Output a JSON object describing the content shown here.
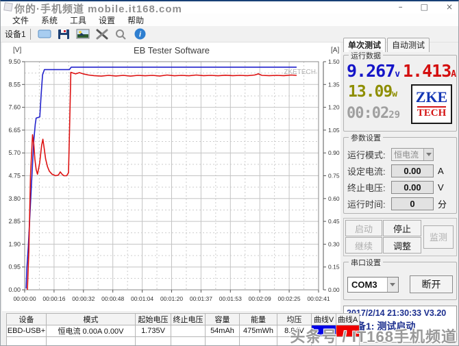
{
  "window": {
    "watermark_top": "你的·手机频道 mobile.it168.com",
    "watermark_bottom": "头条号 / IT168手机频道",
    "controls": {
      "minimize": "–",
      "maximize": "□",
      "close": "×"
    }
  },
  "menu": {
    "items": [
      "文件",
      "系统",
      "工具",
      "设置",
      "帮助"
    ]
  },
  "toolbar": {
    "device_label": "设备1"
  },
  "chart_data": {
    "type": "line",
    "title": "EB Tester Software",
    "watermark": "ZKETECH",
    "left_axis": {
      "unit": "[V]",
      "min": 0,
      "max": 9.5,
      "tick_labels": [
        "9.50",
        "8.55",
        "7.60",
        "6.65",
        "5.70",
        "4.75",
        "3.80",
        "2.85",
        "1.90",
        "0.95",
        "0.00"
      ]
    },
    "right_axis": {
      "unit": "[A]",
      "min": 0,
      "max": 1.5,
      "tick_labels": [
        "1.50",
        "1.35",
        "1.20",
        "1.05",
        "0.90",
        "0.75",
        "0.60",
        "0.45",
        "0.30",
        "0.15",
        "0.00"
      ]
    },
    "x_axis": {
      "min_seconds": 0,
      "max_seconds": 161,
      "tick_labels": [
        "00:00:00",
        "00:00:16",
        "00:00:32",
        "00:00:48",
        "00:01:04",
        "00:01:20",
        "00:01:37",
        "00:01:53",
        "00:02:09",
        "00:02:25",
        "00:02:41"
      ]
    },
    "grid": true,
    "legend": "none",
    "series": [
      {
        "name": "voltage",
        "axis": "left",
        "color": "#2222cc",
        "points": [
          [
            0.8,
            0.05
          ],
          [
            1.2,
            0.9
          ],
          [
            2,
            1.8
          ],
          [
            3,
            3.3
          ],
          [
            4,
            4.8
          ],
          [
            5,
            6.2
          ],
          [
            5.8,
            6.9
          ],
          [
            6.3,
            7.15
          ],
          [
            8.3,
            7.2
          ],
          [
            9,
            8.1
          ],
          [
            9.8,
            8.95
          ],
          [
            10.8,
            9.17
          ],
          [
            24.5,
            9.17
          ],
          [
            25.5,
            9.27
          ],
          [
            149,
            9.27
          ]
        ]
      },
      {
        "name": "current",
        "axis": "right",
        "color": "#dd1111",
        "points": [
          [
            1.5,
            0.0
          ],
          [
            2.3,
            0.25
          ],
          [
            3.2,
            0.75
          ],
          [
            4.3,
            1.02
          ],
          [
            5,
            0.96
          ],
          [
            5.6,
            0.86
          ],
          [
            6.3,
            0.79
          ],
          [
            7,
            0.76
          ],
          [
            8.2,
            0.83
          ],
          [
            9.3,
            0.95
          ],
          [
            10,
            0.99
          ],
          [
            10.7,
            0.93
          ],
          [
            11.5,
            0.86
          ],
          [
            12.5,
            0.81
          ],
          [
            13.5,
            0.78
          ],
          [
            15,
            0.76
          ],
          [
            17,
            0.75
          ],
          [
            18.5,
            0.755
          ],
          [
            19.5,
            0.775
          ],
          [
            20.5,
            0.76
          ],
          [
            21.5,
            0.75
          ],
          [
            23,
            0.75
          ],
          [
            24,
            0.77
          ],
          [
            24.6,
            1.05
          ],
          [
            25.3,
            1.43
          ],
          [
            26.5,
            1.425
          ],
          [
            28,
            1.42
          ],
          [
            30,
            1.428
          ],
          [
            32,
            1.42
          ],
          [
            35,
            1.412
          ],
          [
            38,
            1.408
          ],
          [
            42,
            1.405
          ],
          [
            46,
            1.41
          ],
          [
            50,
            1.406
          ],
          [
            54,
            1.41
          ],
          [
            58,
            1.405
          ],
          [
            62,
            1.41
          ],
          [
            66,
            1.407
          ],
          [
            70,
            1.41
          ],
          [
            74,
            1.406
          ],
          [
            78,
            1.412
          ],
          [
            82,
            1.407
          ],
          [
            86,
            1.41
          ],
          [
            90,
            1.407
          ],
          [
            94,
            1.412
          ],
          [
            98,
            1.408
          ],
          [
            102,
            1.41
          ],
          [
            106,
            1.407
          ],
          [
            110,
            1.411
          ],
          [
            114,
            1.408
          ],
          [
            118,
            1.41
          ],
          [
            122,
            1.408
          ],
          [
            126,
            1.412
          ],
          [
            128,
            1.42
          ],
          [
            130,
            1.41
          ],
          [
            134,
            1.408
          ],
          [
            138,
            1.41
          ],
          [
            142,
            1.408
          ],
          [
            146,
            1.412
          ],
          [
            149,
            1.41
          ]
        ]
      }
    ]
  },
  "right_panel": {
    "tabs": [
      {
        "label": "单次测试"
      },
      {
        "label": "自动测试"
      }
    ],
    "run_data": {
      "title": "运行数据",
      "voltage": "9.267",
      "voltage_unit": "v",
      "current": "1.413",
      "current_unit": "A",
      "power": "13.09",
      "power_unit": "w",
      "runtime": "00:02",
      "runtime_sec": "29",
      "logo_line1": "ZKE",
      "logo_line2": "TECH"
    },
    "params": {
      "title": "参数设置",
      "mode_label": "运行模式:",
      "mode_value": "恒电流",
      "current_label": "设定电流:",
      "current_value": "0.00",
      "current_unit": "A",
      "cutoff_label": "终止电压:",
      "cutoff_value": "0.00",
      "cutoff_unit": "V",
      "time_label": "运行时间:",
      "time_value": "0",
      "time_unit": "分"
    },
    "buttons": {
      "start": "启动",
      "stop": "停止",
      "monitor": "监测",
      "continue": "继续",
      "adjust": "调整"
    },
    "serial": {
      "title": "串口设置",
      "port": "COM3",
      "disconnect": "断开"
    },
    "status": {
      "line1": "2017/2/14 21:30:33  V3.20",
      "line2": "设备1: 测试启动"
    }
  },
  "table": {
    "headers": [
      "设备",
      "模式",
      "起始电压",
      "终止电压",
      "容量",
      "能量",
      "均压",
      "曲线V",
      "曲线A"
    ],
    "row": {
      "device": "EBD-USB+",
      "mode": "恒电流  0.00A  0.00V",
      "start_voltage": "1.735V",
      "end_voltage": "",
      "capacity": "54mAh",
      "energy": "475mWh",
      "avg_voltage": "8.84V",
      "curve_v_color": "#0000e6",
      "curve_a_color": "#ee0000"
    }
  }
}
